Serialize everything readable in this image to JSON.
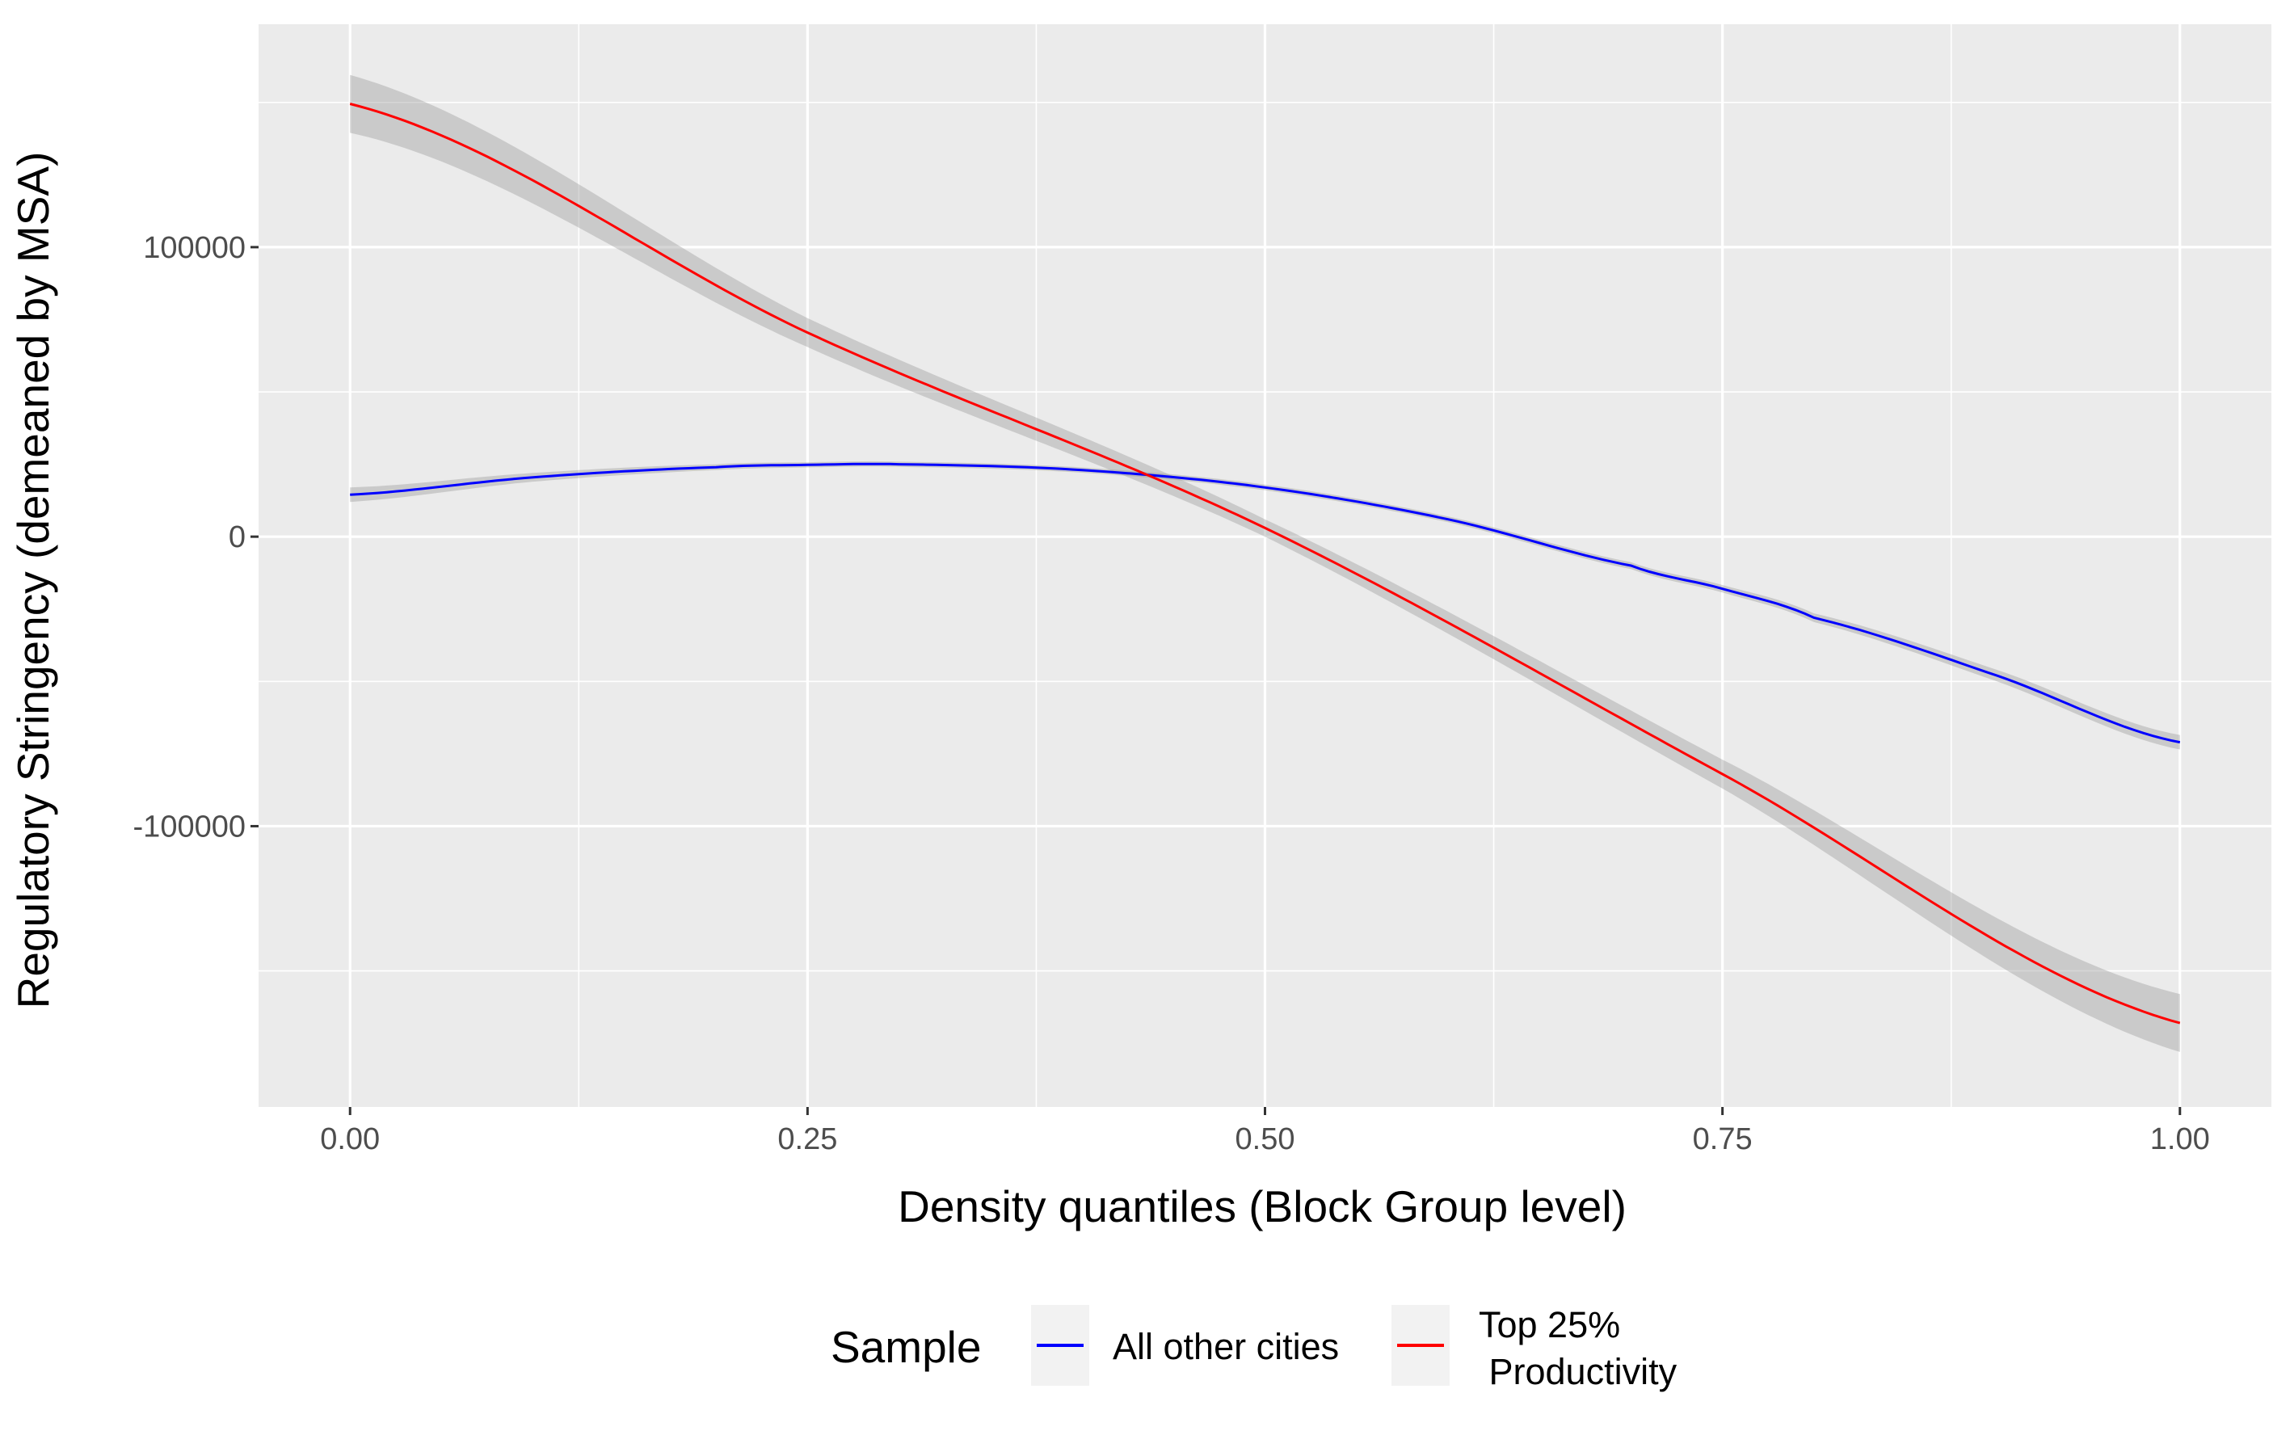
{
  "chart_data": {
    "type": "line",
    "title": "",
    "xlabel": "Density quantiles (Block Group level)",
    "ylabel": "Regulatory Stringency (demeaned by MSA)",
    "xlim": [
      -0.05,
      1.05
    ],
    "ylim": [
      -197000,
      177000
    ],
    "x_ticks": [
      0.0,
      0.25,
      0.5,
      0.75,
      1.0
    ],
    "x_tick_labels": [
      "0.00",
      "0.25",
      "0.50",
      "0.75",
      "1.00"
    ],
    "y_ticks": [
      -100000,
      0,
      100000
    ],
    "y_tick_labels": [
      "-100000",
      "0",
      "100000"
    ],
    "grid": true,
    "legend": {
      "title": "Sample",
      "position": "bottom"
    },
    "series": [
      {
        "name": "All other cities",
        "color": "#0000ff",
        "x": [
          0.0,
          0.1,
          0.2,
          0.25,
          0.3,
          0.4,
          0.5,
          0.6,
          0.7,
          0.75,
          0.8,
          0.9,
          1.0
        ],
        "y": [
          14500,
          20500,
          24000,
          24800,
          25000,
          23000,
          17000,
          6000,
          -10000,
          -18000,
          -28000,
          -48000,
          -71000
        ],
        "ci_halfwidth": [
          2500,
          1500,
          1000,
          900,
          900,
          900,
          1000,
          1000,
          1200,
          1300,
          1500,
          2000,
          2500
        ]
      },
      {
        "name_lines": [
          "Top 25%",
          " Productivity"
        ],
        "color": "#ff0000",
        "x": [
          0.0,
          0.25,
          0.5,
          0.75,
          1.0
        ],
        "y": [
          149500,
          70500,
          3000,
          -82000,
          -168000
        ],
        "ci_halfwidth": [
          10000,
          5000,
          3000,
          5000,
          10000
        ]
      }
    ]
  }
}
